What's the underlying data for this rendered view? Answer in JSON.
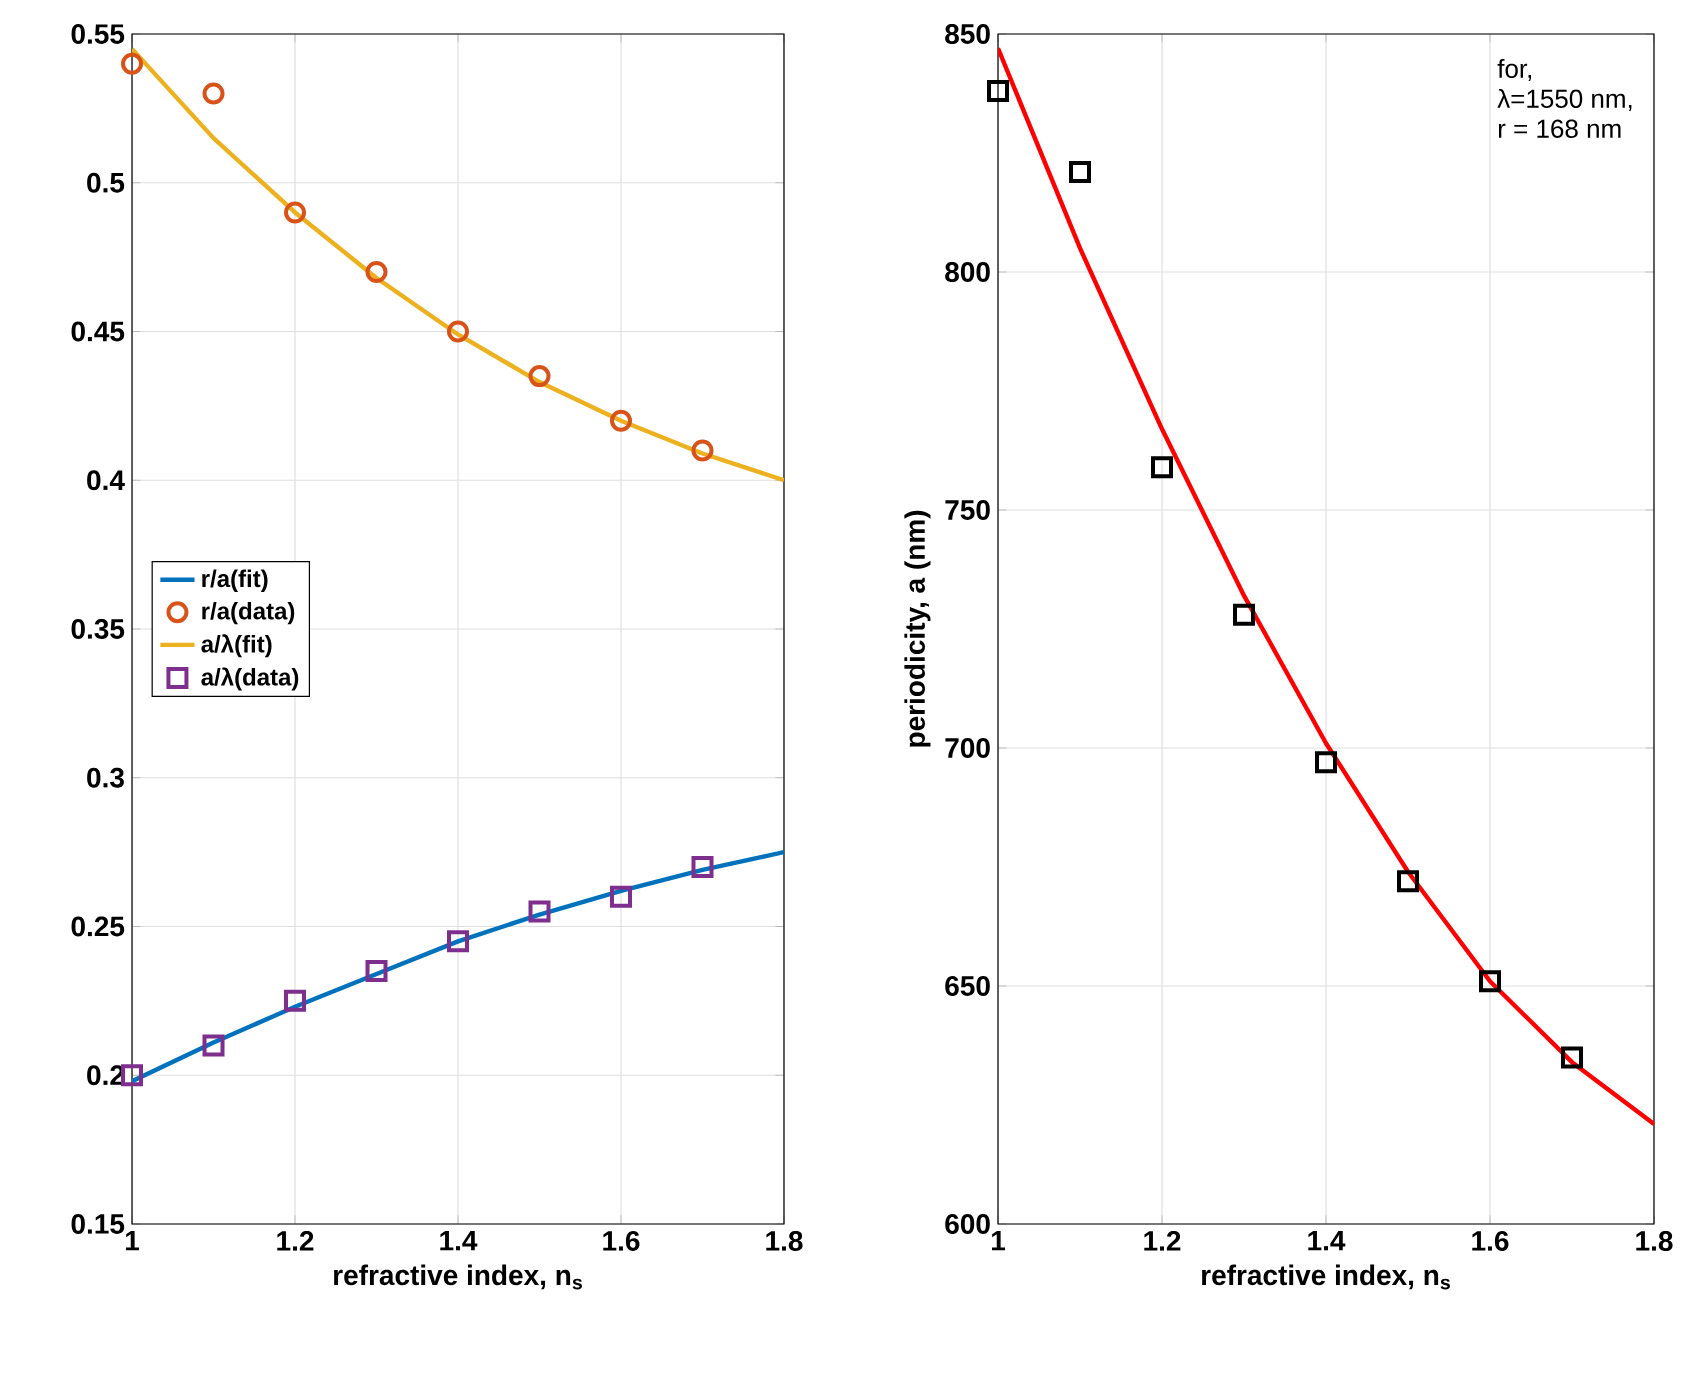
{
  "chart_data": [
    {
      "type": "line",
      "xlabel": "refractive index, n$_{s}$",
      "xlim": [
        1,
        1.8
      ],
      "ylim": [
        0.15,
        0.55
      ],
      "xticks": [
        1,
        1.2,
        1.4,
        1.6,
        1.8
      ],
      "yticks": [
        0.15,
        0.2,
        0.25,
        0.3,
        0.35,
        0.4,
        0.45,
        0.5,
        0.55
      ],
      "grid": true,
      "legend": "center left",
      "series": [
        {
          "name": "r/a(fit)",
          "color": "#0072bd",
          "line_style": "solid",
          "x": [
            1,
            1.1,
            1.2,
            1.3,
            1.4,
            1.5,
            1.6,
            1.7,
            1.8
          ],
          "values": [
            0.198,
            0.211,
            0.223,
            0.234,
            0.245,
            0.254,
            0.262,
            0.269,
            0.275
          ]
        },
        {
          "name": "r/a(data)",
          "type": "scatter",
          "marker": "circle",
          "color": "#d95319",
          "x": [
            1,
            1.1,
            1.2,
            1.3,
            1.4,
            1.5,
            1.6,
            1.7
          ],
          "values": [
            0.54,
            0.53,
            0.49,
            0.47,
            0.45,
            0.435,
            0.42,
            0.41
          ]
        },
        {
          "name": "a/λ(fit)",
          "color": "#edb120",
          "line_style": "solid",
          "x": [
            1,
            1.1,
            1.2,
            1.3,
            1.4,
            1.5,
            1.6,
            1.7,
            1.8
          ],
          "values": [
            0.545,
            0.515,
            0.49,
            0.468,
            0.449,
            0.433,
            0.42,
            0.409,
            0.4
          ]
        },
        {
          "name": "a/λ(data)",
          "type": "scatter",
          "marker": "square",
          "color": "#7e2f8e",
          "x": [
            1,
            1.1,
            1.2,
            1.3,
            1.4,
            1.5,
            1.6,
            1.7
          ],
          "values": [
            0.2,
            0.21,
            0.225,
            0.235,
            0.245,
            0.255,
            0.26,
            0.27
          ]
        }
      ]
    },
    {
      "type": "line",
      "xlabel": "refractive index, n$_{s}$",
      "ylabel": "periodicity, a (nm)",
      "xlim": [
        1,
        1.8
      ],
      "ylim": [
        600,
        850
      ],
      "xticks": [
        1,
        1.2,
        1.4,
        1.6,
        1.8
      ],
      "yticks": [
        600,
        650,
        700,
        750,
        800,
        850
      ],
      "grid": true,
      "annotations": [
        "for,",
        "λ=1550 nm,",
        "r = 168 nm"
      ],
      "series": [
        {
          "color": "#ff0000",
          "line_style": "solid",
          "x": [
            1,
            1.1,
            1.2,
            1.3,
            1.4,
            1.5,
            1.6,
            1.7,
            1.8
          ],
          "values": [
            847,
            805,
            767,
            732,
            701,
            674,
            651,
            634,
            621
          ]
        },
        {
          "type": "scatter",
          "marker": "square",
          "color": "#000000",
          "x": [
            1,
            1.1,
            1.2,
            1.3,
            1.4,
            1.5,
            1.6,
            1.7
          ],
          "values": [
            838,
            821,
            759,
            728,
            697,
            672,
            651,
            635
          ]
        }
      ]
    }
  ]
}
